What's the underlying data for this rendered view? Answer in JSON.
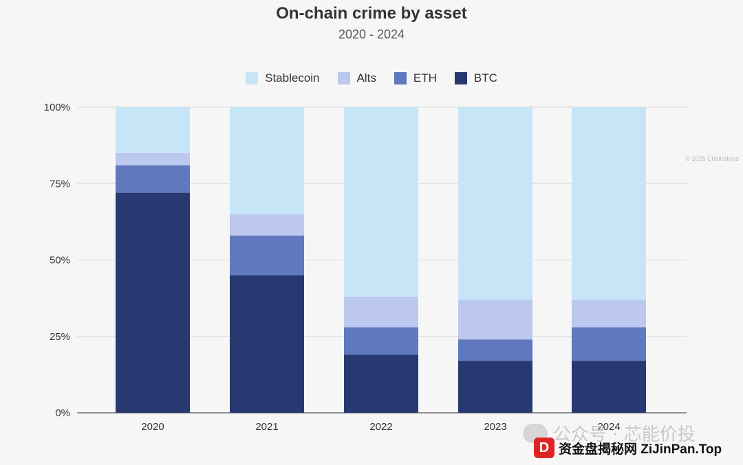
{
  "chart_data": {
    "type": "bar",
    "stacked": true,
    "title": "On-chain crime by asset",
    "subtitle": "2020 - 2024",
    "categories": [
      "2020",
      "2021",
      "2022",
      "2023",
      "2024"
    ],
    "y_ticks": [
      "0%",
      "25%",
      "50%",
      "75%",
      "100%"
    ],
    "ylim": [
      0,
      100
    ],
    "legend_position": "top",
    "series": [
      {
        "name": "BTC",
        "color": "#283870",
        "values": [
          72,
          45,
          19,
          17,
          17
        ]
      },
      {
        "name": "ETH",
        "color": "#6079be",
        "values": [
          9,
          13,
          9,
          7,
          11
        ]
      },
      {
        "name": "Alts",
        "color": "#bcc8ee",
        "values": [
          4,
          7,
          10,
          13,
          9
        ]
      },
      {
        "name": "Stablecoin",
        "color": "#c6e6f7",
        "values": [
          15,
          35,
          62,
          63,
          63
        ]
      }
    ],
    "legend_order": [
      "Stablecoin",
      "Alts",
      "ETH",
      "BTC"
    ],
    "grid": true
  },
  "copyright": "© 2025 Chainalysis",
  "watermark": {
    "text": "公众号 · 芯能价投"
  },
  "badge": {
    "icon": "D",
    "text": "资金盘揭秘网 ZiJinPan.Top"
  }
}
